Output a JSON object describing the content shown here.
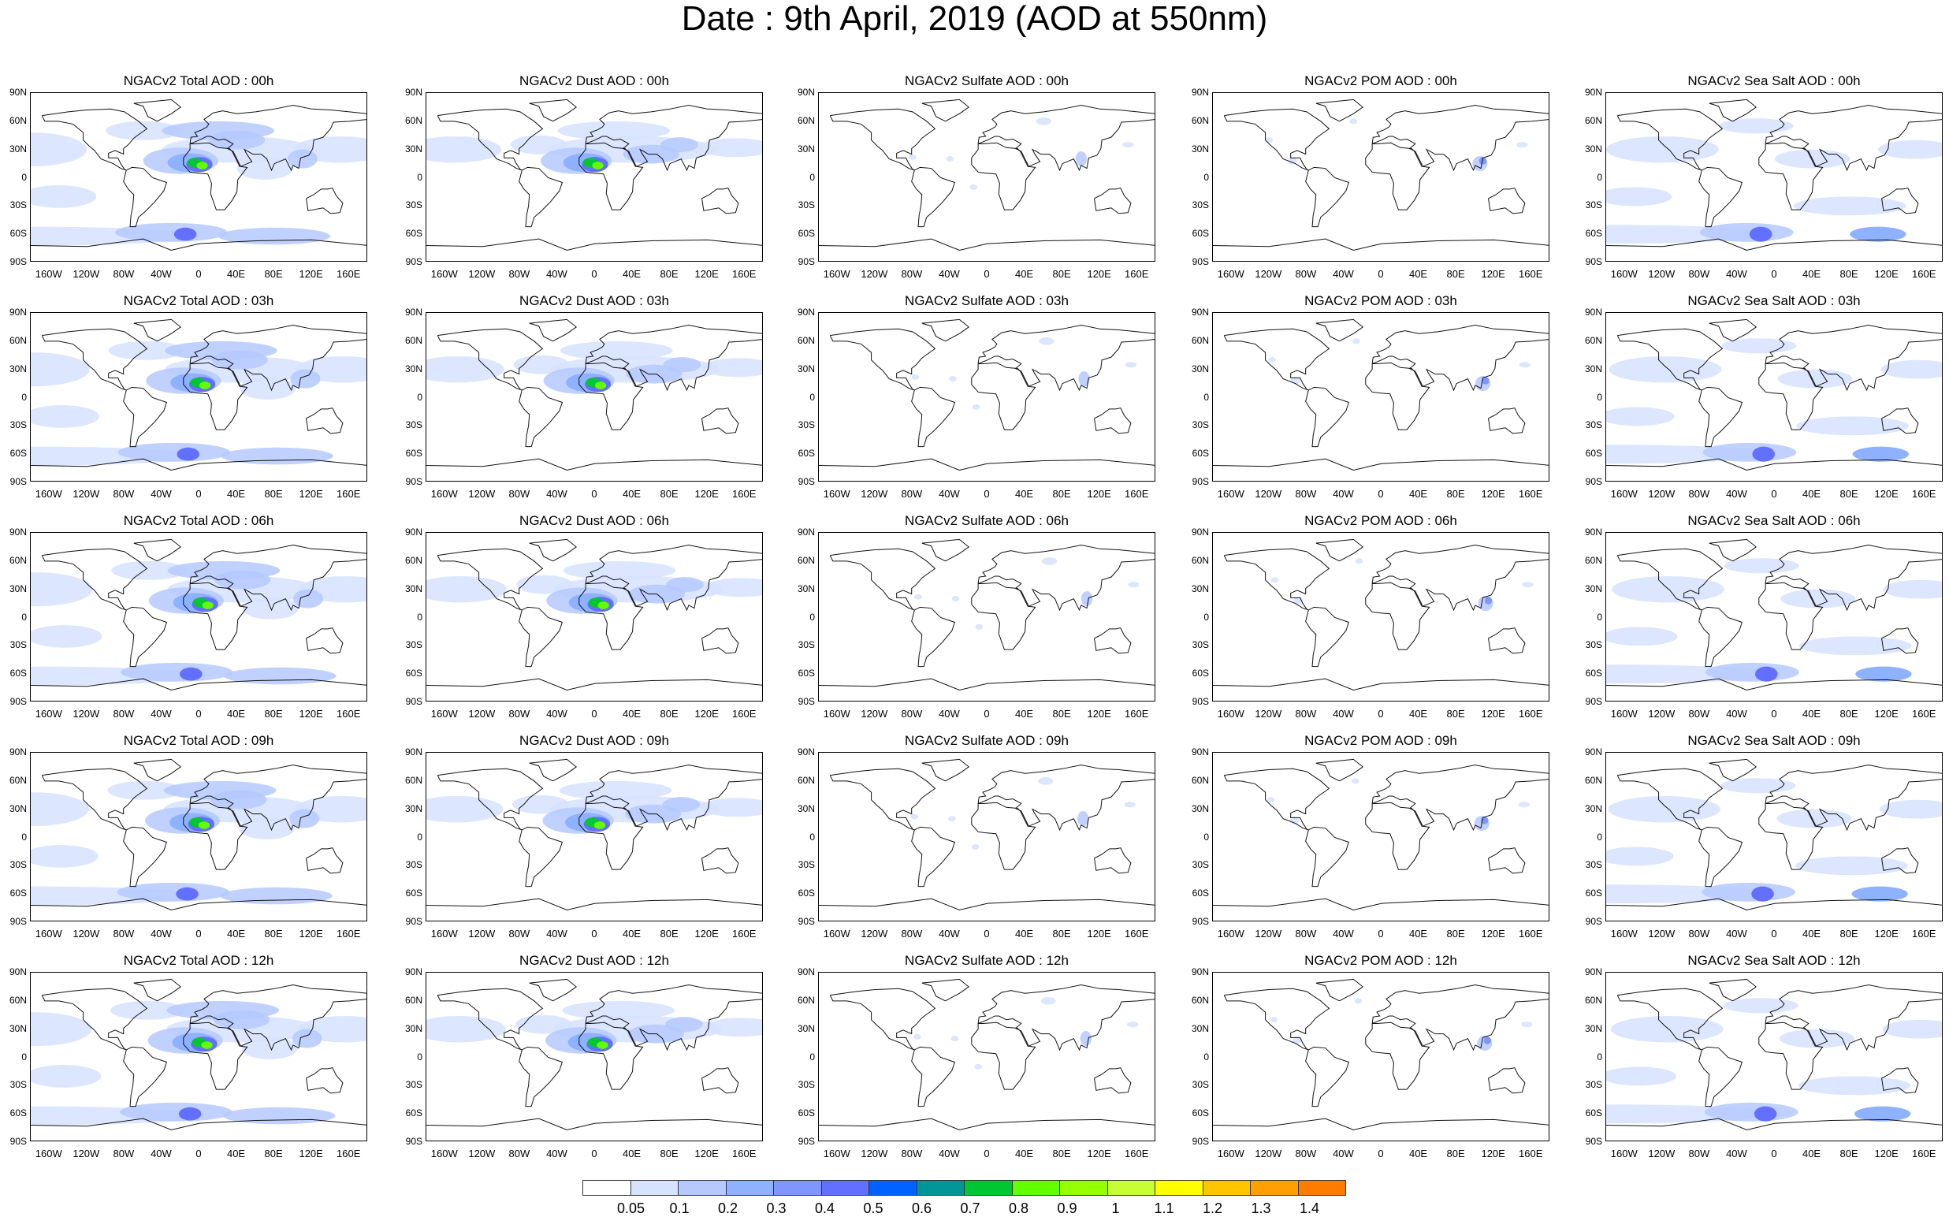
{
  "title": "Date : 9th April, 2019 (AOD at 550nm)",
  "columns": [
    {
      "key": "total",
      "label": "NGACv2 Total AOD"
    },
    {
      "key": "dust",
      "label": "NGACv2 Dust AOD"
    },
    {
      "key": "sulfate",
      "label": "NGACv2 Sulfate AOD"
    },
    {
      "key": "pom",
      "label": "NGACv2 POM AOD"
    },
    {
      "key": "seasalt",
      "label": "NGACv2 Sea Salt AOD"
    }
  ],
  "panel_titles": [
    [
      "NGACv2 Total AOD : 00h",
      "NGACv2 Dust AOD : 00h",
      "NGACv2 Sulfate AOD : 00h",
      "NGACv2 POM AOD : 00h",
      "NGACv2 Sea Salt AOD : 00h"
    ],
    [
      "NGACv2 Total AOD : 03h",
      "NGACv2 Dust AOD : 03h",
      "NGACv2 Sulfate AOD : 03h",
      "NGACv2 POM AOD : 03h",
      "NGACv2 Sea Salt AOD : 03h"
    ],
    [
      "NGACv2 Total AOD : 06h",
      "NGACv2 Dust AOD : 06h",
      "NGACv2 Sulfate AOD : 06h",
      "NGACv2 POM AOD : 06h",
      "NGACv2 Sea Salt AOD : 06h"
    ],
    [
      "NGACv2 Total AOD : 09h",
      "NGACv2 Dust AOD : 09h",
      "NGACv2 Sulfate AOD : 09h",
      "NGACv2 POM AOD : 09h",
      "NGACv2 Sea Salt  AOD : 09h"
    ],
    [
      "NGACv2 Total AOD  : 12h",
      "NGACv2 Dust AOD : 12h",
      "NGACv2 Sulfate AOD : 12h",
      "NGACv2 POM  AOD : 12h",
      "NGACv2 Sea Salt AOD : 12h"
    ]
  ],
  "lat_labels": [
    "90N",
    "60N",
    "30N",
    "0",
    "30S",
    "60S",
    "90S"
  ],
  "lon_labels": [
    "160W",
    "120W",
    "80W",
    "40W",
    "0",
    "40E",
    "80E",
    "120E",
    "160E"
  ],
  "colorbar": {
    "levels": [
      "0.05",
      "0.1",
      "0.2",
      "0.3",
      "0.4",
      "0.5",
      "0.6",
      "0.7",
      "0.8",
      "0.9",
      "1",
      "1.1",
      "1.2",
      "1.3",
      "1.4"
    ],
    "colors": [
      "#ffffff",
      "#d6e2ff",
      "#b5c9ff",
      "#8eb2ff",
      "#7f96ff",
      "#6370ff",
      "#0063ff",
      "#009696",
      "#00c633",
      "#63ff00",
      "#96ff00",
      "#c6ff33",
      "#ffff00",
      "#ffc600",
      "#ffa000",
      "#ff7c00",
      "#ff1900"
    ]
  }
}
